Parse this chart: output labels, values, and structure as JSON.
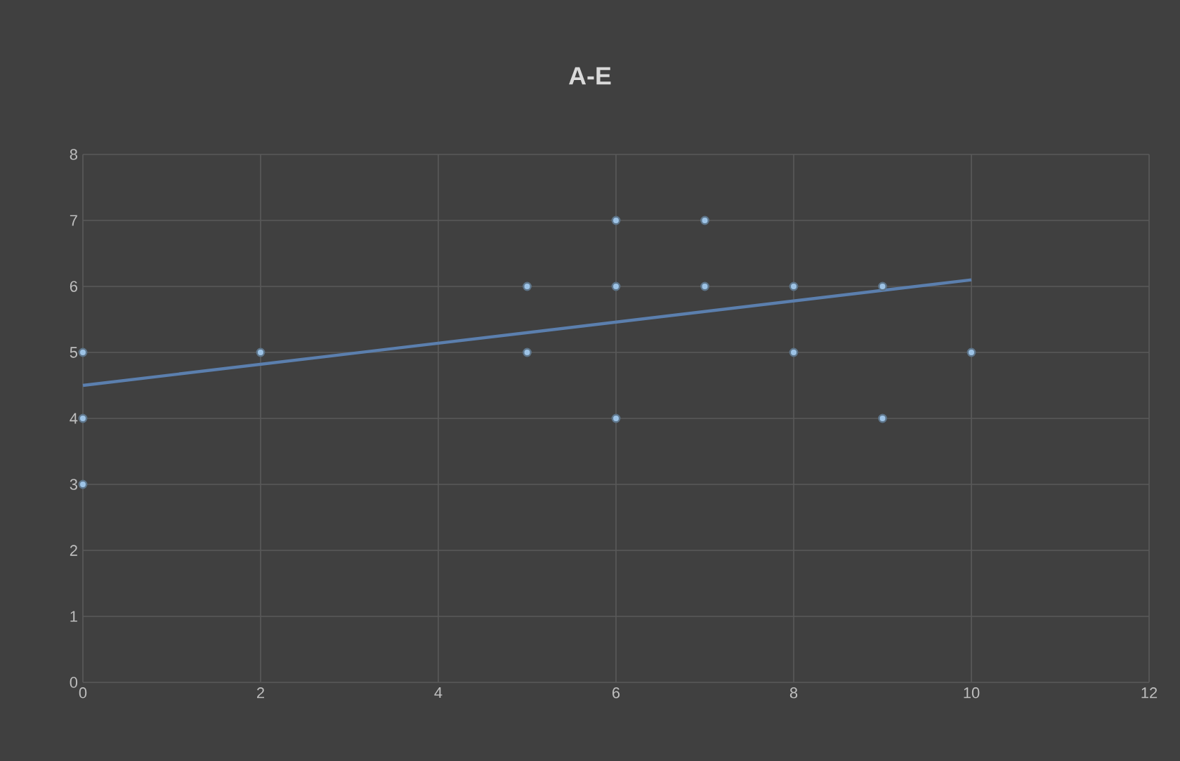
{
  "chart_data": {
    "type": "scatter",
    "title": "A-E",
    "xlim": [
      0,
      12
    ],
    "ylim": [
      0,
      8
    ],
    "xticks": [
      0,
      2,
      4,
      6,
      8,
      10,
      12
    ],
    "yticks": [
      0,
      1,
      2,
      3,
      4,
      5,
      6,
      7,
      8
    ],
    "grid": true,
    "series": [
      {
        "marker": "circle",
        "color": "#9dc3e6",
        "x": [
          0,
          0,
          0,
          2,
          5,
          5,
          6,
          6,
          6,
          7,
          7,
          8,
          8,
          9,
          9,
          10
        ],
        "values": [
          5,
          4,
          3,
          5,
          6,
          5,
          7,
          6,
          4,
          7,
          6,
          6,
          5,
          6,
          4,
          5
        ]
      },
      {
        "type": "line",
        "color": "#5b7fae",
        "line_style": "solid",
        "x": [
          0,
          10
        ],
        "values": [
          4.5,
          6.1
        ]
      }
    ]
  }
}
